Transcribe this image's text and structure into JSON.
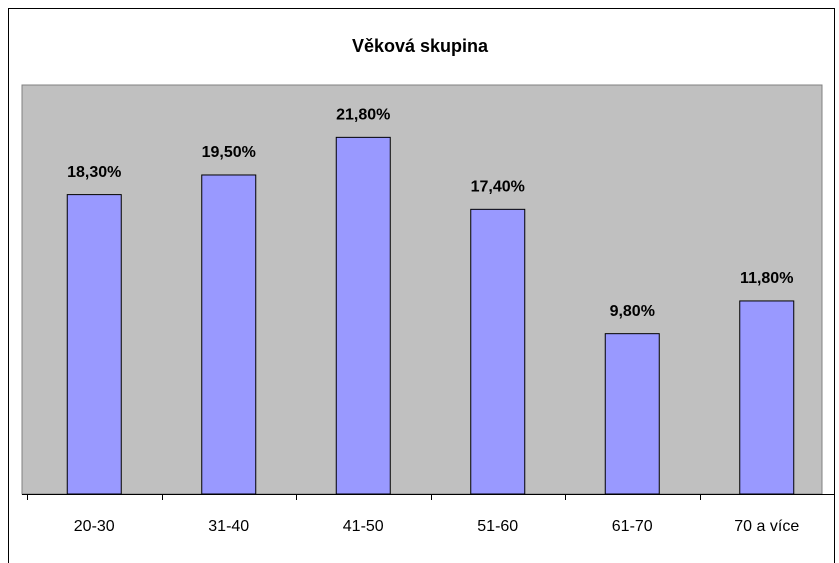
{
  "chart_data": {
    "type": "bar",
    "title": "Věková skupina",
    "categories": [
      "20-30",
      "31-40",
      "41-50",
      "51-60",
      "61-70",
      "70 a více"
    ],
    "values": [
      18.3,
      19.5,
      21.8,
      17.4,
      9.8,
      11.8
    ],
    "value_labels": [
      "18,30%",
      "19,50%",
      "21,80%",
      "17,40%",
      "9,80%",
      "11,80%"
    ],
    "color": "#9999ff",
    "ylim": [
      0,
      25
    ]
  }
}
